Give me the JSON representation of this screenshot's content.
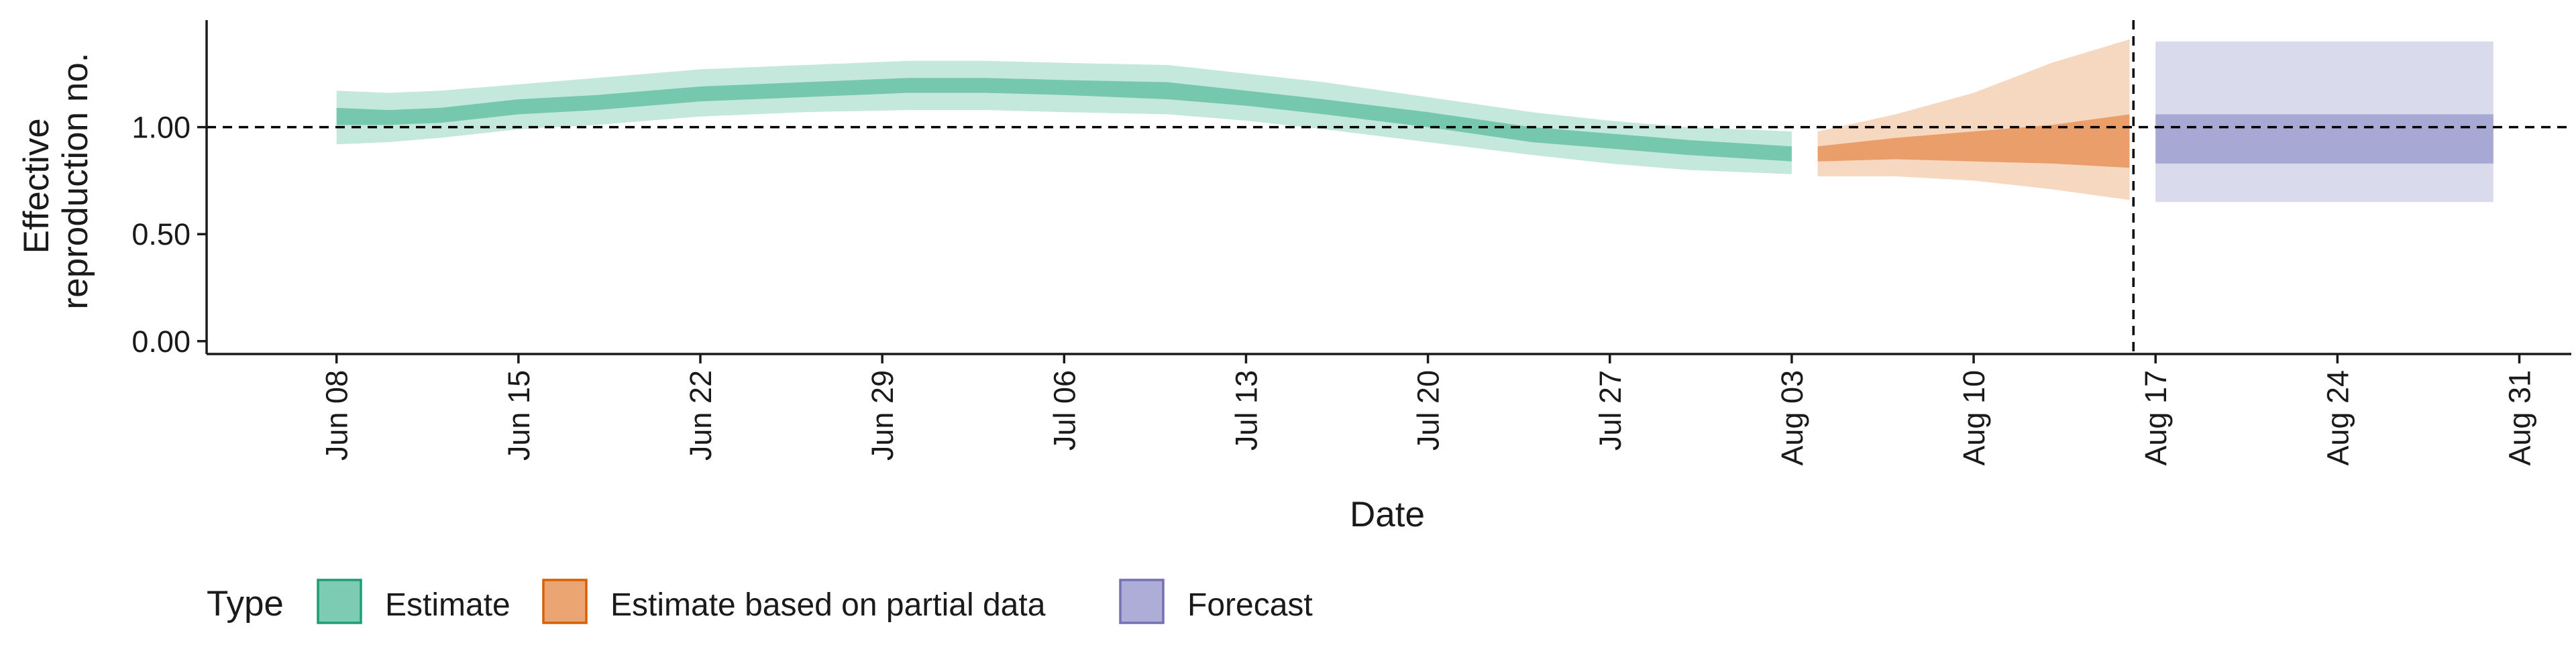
{
  "chart_data": {
    "type": "area",
    "xlabel": "Date",
    "ylabel_lines": [
      "Effective",
      "reproduction no."
    ],
    "legend_title": "Type",
    "legend_position": "bottom-left",
    "grid": false,
    "x_range": [
      "2020-06-03",
      "2020-09-02"
    ],
    "y_range": [
      -0.06,
      1.5
    ],
    "y_ticks": [
      {
        "value": 0.0,
        "label": "0.00"
      },
      {
        "value": 0.5,
        "label": "0.50"
      },
      {
        "value": 1.0,
        "label": "1.00"
      }
    ],
    "x_ticks": [
      {
        "date": "2020-06-08",
        "label": "Jun 08"
      },
      {
        "date": "2020-06-15",
        "label": "Jun 15"
      },
      {
        "date": "2020-06-22",
        "label": "Jun 22"
      },
      {
        "date": "2020-06-29",
        "label": "Jun 29"
      },
      {
        "date": "2020-07-06",
        "label": "Jul 06"
      },
      {
        "date": "2020-07-13",
        "label": "Jul 13"
      },
      {
        "date": "2020-07-20",
        "label": "Jul 20"
      },
      {
        "date": "2020-07-27",
        "label": "Jul 27"
      },
      {
        "date": "2020-08-03",
        "label": "Aug 03"
      },
      {
        "date": "2020-08-10",
        "label": "Aug 10"
      },
      {
        "date": "2020-08-17",
        "label": "Aug 17"
      },
      {
        "date": "2020-08-24",
        "label": "Aug 24"
      },
      {
        "date": "2020-08-31",
        "label": "Aug 31"
      }
    ],
    "reference_line_y": 1.0,
    "forecast_cutoff_date": "2020-08-16",
    "series": [
      {
        "name": "Estimate",
        "color": "#66c2a5",
        "edge_color": "#1b9e77",
        "points": [
          {
            "date": "2020-06-08",
            "lower90": 0.92,
            "upper90": 1.17,
            "lower50": 1.01,
            "upper50": 1.09
          },
          {
            "date": "2020-06-10",
            "lower90": 0.93,
            "upper90": 1.16,
            "lower50": 1.01,
            "upper50": 1.08
          },
          {
            "date": "2020-06-12",
            "lower90": 0.95,
            "upper90": 1.17,
            "lower50": 1.02,
            "upper50": 1.09
          },
          {
            "date": "2020-06-15",
            "lower90": 0.99,
            "upper90": 1.2,
            "lower50": 1.06,
            "upper50": 1.13
          },
          {
            "date": "2020-06-18",
            "lower90": 1.01,
            "upper90": 1.23,
            "lower50": 1.08,
            "upper50": 1.15
          },
          {
            "date": "2020-06-22",
            "lower90": 1.05,
            "upper90": 1.27,
            "lower50": 1.12,
            "upper50": 1.19
          },
          {
            "date": "2020-06-26",
            "lower90": 1.07,
            "upper90": 1.29,
            "lower50": 1.14,
            "upper50": 1.21
          },
          {
            "date": "2020-06-30",
            "lower90": 1.08,
            "upper90": 1.31,
            "lower50": 1.16,
            "upper50": 1.23
          },
          {
            "date": "2020-07-03",
            "lower90": 1.08,
            "upper90": 1.31,
            "lower50": 1.16,
            "upper50": 1.23
          },
          {
            "date": "2020-07-06",
            "lower90": 1.07,
            "upper90": 1.3,
            "lower50": 1.15,
            "upper50": 1.22
          },
          {
            "date": "2020-07-10",
            "lower90": 1.06,
            "upper90": 1.29,
            "lower50": 1.13,
            "upper50": 1.21
          },
          {
            "date": "2020-07-13",
            "lower90": 1.03,
            "upper90": 1.25,
            "lower50": 1.1,
            "upper50": 1.17
          },
          {
            "date": "2020-07-16",
            "lower90": 0.99,
            "upper90": 1.21,
            "lower50": 1.06,
            "upper50": 1.13
          },
          {
            "date": "2020-07-20",
            "lower90": 0.93,
            "upper90": 1.14,
            "lower50": 1.0,
            "upper50": 1.07
          },
          {
            "date": "2020-07-24",
            "lower90": 0.87,
            "upper90": 1.07,
            "lower50": 0.93,
            "upper50": 1.0
          },
          {
            "date": "2020-07-27",
            "lower90": 0.83,
            "upper90": 1.03,
            "lower50": 0.9,
            "upper50": 0.97
          },
          {
            "date": "2020-07-30",
            "lower90": 0.8,
            "upper90": 1.0,
            "lower50": 0.87,
            "upper50": 0.94
          },
          {
            "date": "2020-08-03",
            "lower90": 0.78,
            "upper90": 0.98,
            "lower50": 0.84,
            "upper50": 0.91
          }
        ]
      },
      {
        "name": "Estimate based on partial data",
        "color": "#fc8d62",
        "fill_color": "#e8955a",
        "edge_color": "#d95f02",
        "points": [
          {
            "date": "2020-08-04",
            "lower90": 0.77,
            "upper90": 0.98,
            "lower50": 0.84,
            "upper50": 0.91
          },
          {
            "date": "2020-08-07",
            "lower90": 0.77,
            "upper90": 1.06,
            "lower50": 0.85,
            "upper50": 0.95
          },
          {
            "date": "2020-08-10",
            "lower90": 0.75,
            "upper90": 1.16,
            "lower50": 0.84,
            "upper50": 0.98
          },
          {
            "date": "2020-08-13",
            "lower90": 0.71,
            "upper90": 1.3,
            "lower50": 0.83,
            "upper50": 1.01
          },
          {
            "date": "2020-08-16",
            "lower90": 0.66,
            "upper90": 1.41,
            "lower50": 0.81,
            "upper50": 1.06
          }
        ]
      },
      {
        "name": "Forecast",
        "color": "#8da0cb",
        "fill_color": "#9f9fd0",
        "edge_color": "#7570b3",
        "points": [
          {
            "date": "2020-08-17",
            "lower90": 0.65,
            "upper90": 1.4,
            "lower50": 0.83,
            "upper50": 1.06
          },
          {
            "date": "2020-08-30",
            "lower90": 0.65,
            "upper90": 1.4,
            "lower50": 0.83,
            "upper50": 1.06
          }
        ]
      }
    ]
  }
}
